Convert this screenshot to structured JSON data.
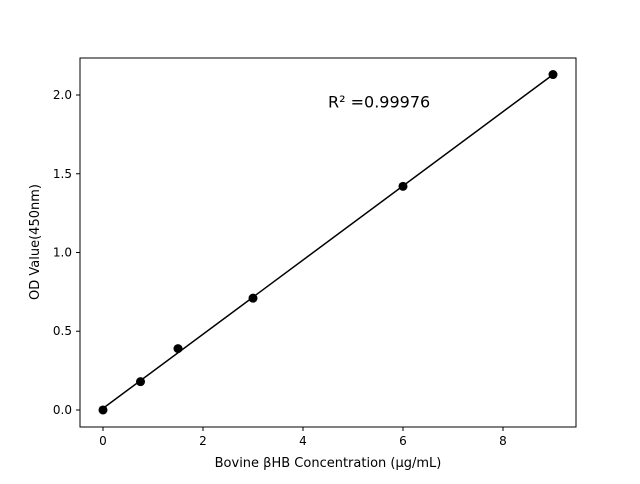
{
  "chart_data": {
    "type": "scatter",
    "title": "",
    "xlabel": "Bovine βHB Concentration (μg/mL)",
    "ylabel": "OD Value(450nm)",
    "xlim": [
      -0.46,
      9.46
    ],
    "ylim": [
      -0.108,
      2.235
    ],
    "xticks": [
      0,
      2,
      4,
      6,
      8
    ],
    "yticks": [
      0.0,
      0.5,
      1.0,
      1.5,
      2.0
    ],
    "xtick_labels": [
      "0",
      "2",
      "4",
      "6",
      "8"
    ],
    "ytick_labels": [
      "0.0",
      "0.5",
      "1.0",
      "1.5",
      "2.0"
    ],
    "grid": false,
    "series": [
      {
        "x": [
          0,
          0.75,
          1.5,
          3,
          6,
          9
        ],
        "y": [
          0.0,
          0.18,
          0.39,
          0.71,
          1.42,
          2.13
        ],
        "marker": "circle",
        "color": "#000000",
        "fit_line": "linear"
      }
    ],
    "annotation": "R² =0.99976"
  }
}
